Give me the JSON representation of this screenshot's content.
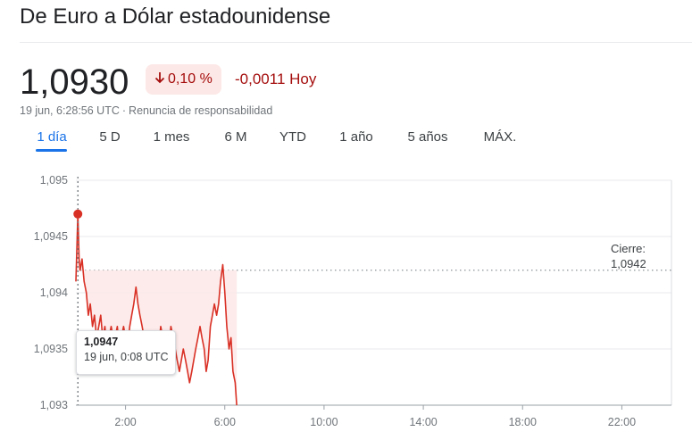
{
  "header": {
    "title": "De Euro a Dólar estadounidense",
    "price": "1,0930",
    "change_pct": "0,10 %",
    "change_abs": "-0,0011 Hoy",
    "arrow_icon": "arrow-down-icon",
    "timestamp": "19 jun, 6:28:56 UTC",
    "separator": "·",
    "disclaimer": "Renuncia de responsabilidad"
  },
  "tabs": [
    {
      "label": "1 día",
      "active": true
    },
    {
      "label": "5 D",
      "active": false
    },
    {
      "label": "1 mes",
      "active": false
    },
    {
      "label": "6 M",
      "active": false
    },
    {
      "label": "YTD",
      "active": false
    },
    {
      "label": "1 año",
      "active": false
    },
    {
      "label": "5 años",
      "active": false
    },
    {
      "label": "MÁX.",
      "active": false
    }
  ],
  "tooltip": {
    "value": "1,0947",
    "time": "19 jun, 0:08 UTC"
  },
  "close": {
    "label": "Cierre:",
    "value": "1,0942"
  },
  "colors": {
    "line": "#d93025",
    "fill": "#fce8e6",
    "accent": "#1a73e8",
    "grid": "#e8eaed"
  },
  "chart_data": {
    "type": "line",
    "title": "",
    "xlabel": "",
    "ylabel": "",
    "ylim": [
      1.093,
      1.095
    ],
    "y_ticks": [
      "1,095",
      "1,0945",
      "1,094",
      "1,0935",
      "1,093"
    ],
    "y_tick_values": [
      1.095,
      1.0945,
      1.094,
      1.0935,
      1.093
    ],
    "x_ticks": [
      "2:00",
      "6:00",
      "10:00",
      "14:00",
      "18:00",
      "22:00"
    ],
    "x_tick_hours": [
      2,
      6,
      10,
      14,
      18,
      22
    ],
    "xlim_hours": [
      0,
      24
    ],
    "previous_close": 1.0942,
    "series": [
      {
        "x_hours": [
          0.0,
          0.08,
          0.13,
          0.17,
          0.25,
          0.33,
          0.42,
          0.5,
          0.58,
          0.67,
          0.75,
          0.83,
          0.92,
          1.0,
          1.08,
          1.17,
          1.25,
          1.33,
          1.42,
          1.5,
          1.58,
          1.67,
          1.75,
          1.83,
          1.92,
          2.0,
          2.08,
          2.17,
          2.25,
          2.33,
          2.42,
          2.5,
          2.58,
          2.67,
          2.75,
          2.83,
          2.92,
          3.0,
          3.08,
          3.17,
          3.25,
          3.33,
          3.42,
          3.5,
          3.58,
          3.67,
          3.75,
          3.83,
          3.92,
          4.0,
          4.08,
          4.17,
          4.25,
          4.33,
          4.42,
          4.5,
          4.58,
          4.67,
          4.75,
          4.83,
          4.92,
          5.0,
          5.08,
          5.17,
          5.25,
          5.33,
          5.42,
          5.5,
          5.58,
          5.67,
          5.75,
          5.83,
          5.92,
          6.0,
          6.08,
          6.17,
          6.25,
          6.33,
          6.42,
          6.48
        ],
        "values": [
          1.0941,
          1.0947,
          1.0943,
          1.0942,
          1.0943,
          1.0941,
          1.094,
          1.0938,
          1.0939,
          1.0937,
          1.0938,
          1.0936,
          1.0937,
          1.0938,
          1.0936,
          1.0937,
          1.0935,
          1.0936,
          1.0937,
          1.0936,
          1.0936,
          1.0937,
          1.0935,
          1.0936,
          1.0937,
          1.0936,
          1.0935,
          1.0937,
          1.0938,
          1.0939,
          1.09405,
          1.0939,
          1.0938,
          1.0937,
          1.0936,
          1.0935,
          1.0934,
          1.0935,
          1.0936,
          1.0934,
          1.0933,
          1.0935,
          1.0937,
          1.0936,
          1.0935,
          1.0934,
          1.0935,
          1.0937,
          1.0936,
          1.0935,
          1.0934,
          1.0933,
          1.0934,
          1.0935,
          1.0934,
          1.0933,
          1.0932,
          1.0933,
          1.0934,
          1.0935,
          1.0936,
          1.0937,
          1.0936,
          1.0935,
          1.0933,
          1.0934,
          1.0937,
          1.0938,
          1.0939,
          1.0938,
          1.0939,
          1.0941,
          1.09425,
          1.094,
          1.0937,
          1.0935,
          1.0936,
          1.0933,
          1.0932,
          1.093
        ]
      }
    ],
    "highlight_point": {
      "x_hours": 0.08,
      "value": 1.0947
    }
  }
}
